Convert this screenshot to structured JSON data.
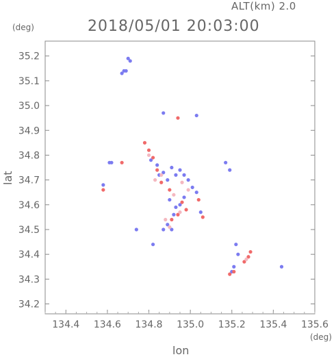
{
  "header": {
    "alt_label": "ALT(km) 2.0",
    "timestamp": "2018/05/01 20:03:00"
  },
  "axes": {
    "y_unit": "(deg)",
    "x_unit": "(deg)",
    "y_label": "lat",
    "x_label": "lon"
  },
  "chart_data": {
    "type": "scatter",
    "xlabel": "lon",
    "ylabel": "lat",
    "xlim": [
      134.3,
      135.6
    ],
    "ylim": [
      34.16,
      35.26
    ],
    "x_ticks": [
      "134.4",
      "134.6",
      "134.8",
      "135.0",
      "135.2",
      "135.4",
      "135.6"
    ],
    "y_ticks": [
      "34.2",
      "34.3",
      "34.4",
      "34.5",
      "34.6",
      "34.7",
      "34.8",
      "34.9",
      "35.0",
      "35.1",
      "35.2"
    ],
    "colors": {
      "blue": "#7b7bf0",
      "red": "#f06a6a",
      "pink": "#f4b8c0"
    },
    "series": [
      {
        "color": "blue",
        "points": [
          [
            134.7,
            35.19
          ],
          [
            134.71,
            35.18
          ],
          [
            134.69,
            35.14
          ],
          [
            134.67,
            35.13
          ],
          [
            134.68,
            35.14
          ],
          [
            134.87,
            34.97
          ],
          [
            135.03,
            34.96
          ],
          [
            134.58,
            34.68
          ],
          [
            134.61,
            34.77
          ],
          [
            134.62,
            34.77
          ],
          [
            134.85,
            34.72
          ],
          [
            134.87,
            34.73
          ],
          [
            134.89,
            34.7
          ],
          [
            134.91,
            34.75
          ],
          [
            134.93,
            34.72
          ],
          [
            134.95,
            34.74
          ],
          [
            134.97,
            34.72
          ],
          [
            134.99,
            34.7
          ],
          [
            135.01,
            34.67
          ],
          [
            135.03,
            34.65
          ],
          [
            134.9,
            34.62
          ],
          [
            134.93,
            34.59
          ],
          [
            134.95,
            34.6
          ],
          [
            134.92,
            34.56
          ],
          [
            134.89,
            34.52
          ],
          [
            134.91,
            34.5
          ],
          [
            134.87,
            34.5
          ],
          [
            135.05,
            34.57
          ],
          [
            135.17,
            34.77
          ],
          [
            135.19,
            34.74
          ],
          [
            135.22,
            34.44
          ],
          [
            135.23,
            34.4
          ],
          [
            135.21,
            34.35
          ],
          [
            135.2,
            34.33
          ],
          [
            135.44,
            34.35
          ],
          [
            134.82,
            34.44
          ],
          [
            134.74,
            34.5
          ],
          [
            134.84,
            34.76
          ],
          [
            134.81,
            34.78
          ],
          [
            134.97,
            34.63
          ]
        ]
      },
      {
        "color": "red",
        "points": [
          [
            134.94,
            34.95
          ],
          [
            134.78,
            34.85
          ],
          [
            134.8,
            34.82
          ],
          [
            134.82,
            34.79
          ],
          [
            134.84,
            34.74
          ],
          [
            134.67,
            34.77
          ],
          [
            134.86,
            34.69
          ],
          [
            134.9,
            34.66
          ],
          [
            134.96,
            34.61
          ],
          [
            134.98,
            34.58
          ],
          [
            134.94,
            34.56
          ],
          [
            134.91,
            34.54
          ],
          [
            135.04,
            34.62
          ],
          [
            135.06,
            34.55
          ],
          [
            135.26,
            34.37
          ],
          [
            135.28,
            34.39
          ],
          [
            135.29,
            34.41
          ],
          [
            135.21,
            34.33
          ],
          [
            135.19,
            34.32
          ],
          [
            134.58,
            34.66
          ]
        ]
      },
      {
        "color": "pink",
        "points": [
          [
            134.8,
            34.8
          ],
          [
            134.86,
            34.72
          ],
          [
            134.92,
            34.64
          ],
          [
            134.9,
            34.51
          ],
          [
            134.95,
            34.57
          ],
          [
            134.88,
            34.54
          ],
          [
            134.99,
            34.66
          ],
          [
            135.27,
            34.38
          ],
          [
            134.83,
            34.7
          ],
          [
            134.96,
            34.69
          ]
        ]
      }
    ]
  }
}
